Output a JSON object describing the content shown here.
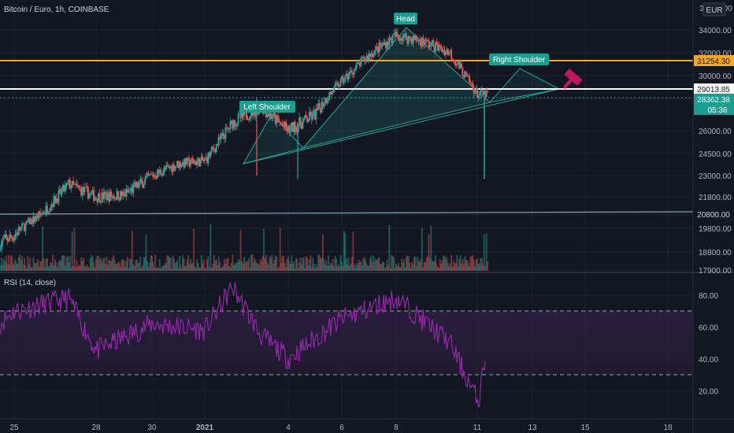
{
  "header": {
    "symbol_line": "Bitcoin / Euro, 1h, COINBASE",
    "currency_button": "EUR",
    "clipped_top_label": "36000.00"
  },
  "colors": {
    "background": "#131722",
    "grid": "#1e222d",
    "up_candle": "#26a69a",
    "down_candle": "#ef5350",
    "pattern_fill": "#26a69a",
    "neckline_color": "#26a69a",
    "resistance_line": "#f5a623",
    "current_price_line": "#ffffff",
    "support_line": "#9ec9d8",
    "rsi_line": "#9c27b0",
    "rsi_band": "#2b1f3e"
  },
  "chart_data": [
    {
      "type": "candlestick",
      "title": "Bitcoin / Euro, 1h, COINBASE",
      "xlabel": "",
      "ylabel": "",
      "x_ticks": [
        "25",
        "28",
        "30",
        "2021",
        "4",
        "6",
        "8",
        "11",
        "13",
        "15",
        "18"
      ],
      "y_ticks": [
        17900,
        18800,
        19800,
        20800,
        21800,
        23000,
        24500,
        26000,
        28000,
        30000,
        32000,
        34000
      ],
      "y_tick_labels": [
        "17900.00",
        "18800.00",
        "19800.00",
        "20800.00",
        "21800.00",
        "23000.00",
        "24500.00",
        "26000.00",
        "28000.00",
        "30000.00",
        "32000.00",
        "34000.00"
      ],
      "ylim": [
        17900,
        36000
      ],
      "y_scale": "log",
      "grid": true,
      "daily_closes_approx": [
        {
          "date": "Dec 24",
          "close": 18900
        },
        {
          "date": "Dec 25",
          "close": 19500
        },
        {
          "date": "Dec 26",
          "close": 20800
        },
        {
          "date": "Dec 27",
          "close": 22500
        },
        {
          "date": "Dec 28",
          "close": 21800
        },
        {
          "date": "Dec 29",
          "close": 21900
        },
        {
          "date": "Dec 30",
          "close": 23000
        },
        {
          "date": "Dec 31",
          "close": 23800
        },
        {
          "date": "Jan 1",
          "close": 24000
        },
        {
          "date": "Jan 2",
          "close": 26500
        },
        {
          "date": "Jan 3",
          "close": 27500
        },
        {
          "date": "Jan 4",
          "close": 26000
        },
        {
          "date": "Jan 5",
          "close": 27000
        },
        {
          "date": "Jan 6",
          "close": 29500
        },
        {
          "date": "Jan 7",
          "close": 31800
        },
        {
          "date": "Jan 8",
          "close": 33500
        },
        {
          "date": "Jan 9",
          "close": 33000
        },
        {
          "date": "Jan 10",
          "close": 32000
        },
        {
          "date": "Jan 11",
          "close": 28362
        }
      ],
      "extremes": {
        "high": 34400,
        "low_wick": 22800,
        "left_shoulder_high": 28000
      },
      "price_labels": [
        {
          "label": "31254.30",
          "kind": "resistance-line"
        },
        {
          "label": "29013.85",
          "kind": "current-price-line"
        },
        {
          "label": "28362.38",
          "kind": "last-price"
        },
        {
          "label": "05:36",
          "kind": "bar-countdown"
        },
        {
          "label": "20800.00",
          "kind": "support-line"
        }
      ],
      "annotations": [
        {
          "text": "Left Shoulder",
          "kind": "pattern-label"
        },
        {
          "text": "Head",
          "kind": "pattern-label"
        },
        {
          "text": "Right Shoulder",
          "kind": "pattern-label"
        }
      ]
    },
    {
      "type": "line",
      "title": "RSI (14, close)",
      "series": [
        {
          "name": "RSI (14, close)"
        }
      ],
      "y_ticks": [
        20,
        40,
        60,
        80
      ],
      "y_tick_labels": [
        "20.00",
        "40.00",
        "60.00",
        "80.00"
      ],
      "ylim": [
        10,
        90
      ],
      "bands": [
        30,
        70
      ],
      "grid": true,
      "values_approx": [
        {
          "date": "Dec 25",
          "value": 70
        },
        {
          "date": "Dec 27",
          "value": 78
        },
        {
          "date": "Dec 28",
          "value": 45
        },
        {
          "date": "Dec 30",
          "value": 62
        },
        {
          "date": "Jan 1",
          "value": 58
        },
        {
          "date": "Jan 2",
          "value": 85
        },
        {
          "date": "Jan 3",
          "value": 55
        },
        {
          "date": "Jan 4",
          "value": 40
        },
        {
          "date": "Jan 6",
          "value": 65
        },
        {
          "date": "Jan 8",
          "value": 78
        },
        {
          "date": "Jan 10",
          "value": 50
        },
        {
          "date": "Jan 11",
          "value": 12
        },
        {
          "date": "Jan 11",
          "value": 44
        }
      ]
    }
  ]
}
